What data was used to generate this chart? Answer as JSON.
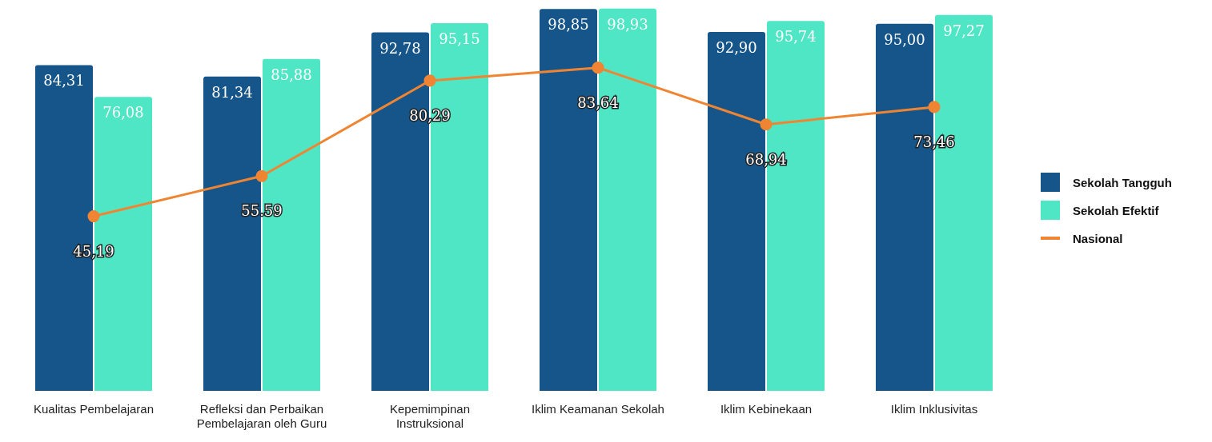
{
  "chart_data": {
    "type": "bar",
    "categories": [
      "Kualitas Pembelajaran",
      "Refleksi dan Perbaikan Pembelajaran oleh Guru",
      "Kepemimpinan Instruksional",
      "Iklim Keamanan Sekolah",
      "Iklim Kebinekaan",
      "Iklim Inklusivitas"
    ],
    "series": [
      {
        "name": "Sekolah Tangguh",
        "color": "#16558a",
        "values": [
          84.31,
          81.34,
          92.78,
          98.85,
          92.9,
          95.0
        ],
        "value_labels": [
          "84,31",
          "81,34",
          "92,78",
          "98,85",
          "92,90",
          "95,00"
        ]
      },
      {
        "name": "Sekolah Efektif",
        "color": "#4ee6c5",
        "values": [
          76.08,
          85.88,
          95.15,
          98.93,
          95.74,
          97.27
        ],
        "value_labels": [
          "76,08",
          "85,88",
          "95,15",
          "98,93",
          "95,74",
          "97,27"
        ]
      },
      {
        "name": "Nasional",
        "type": "line",
        "color": "#ef8533",
        "values": [
          45.19,
          55.59,
          80.29,
          83.64,
          68.94,
          73.46
        ],
        "value_labels": [
          "45,19",
          "55.59",
          "80,29",
          "83,64",
          "68,94",
          "73,46"
        ]
      }
    ],
    "marker": "circle",
    "line_style": "solid",
    "legend": "right"
  }
}
